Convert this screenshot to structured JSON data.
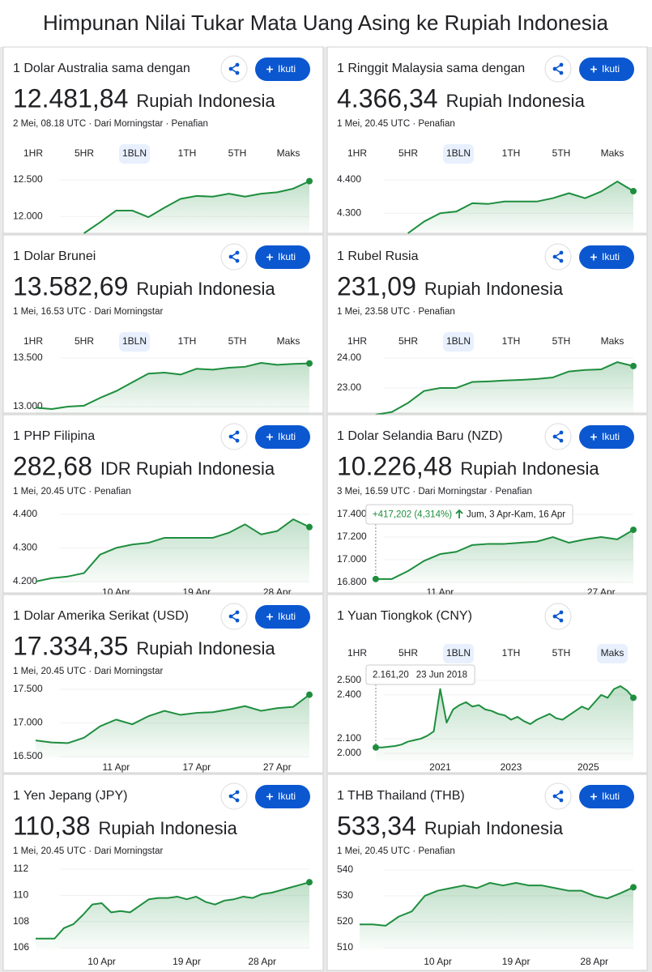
{
  "header": {
    "title": "Himpunan Nilai Tukar Mata Uang Asing ke Rupiah Indonesia"
  },
  "tabs": [
    "1HR",
    "5HR",
    "1BLN",
    "1TH",
    "5TH",
    "Maks"
  ],
  "follow": "Ikuti",
  "cards": [
    {
      "label": "1 Dolar Australia sama dengan",
      "value": "12.481,84",
      "unit": "Rupiah Indonesia",
      "meta": "2 Mei, 08.18 UTC · Dari Morningstar · Penafian",
      "show_tabs": true,
      "active_tabs": [
        2
      ],
      "show_follow": true,
      "chart": {
        "type": "line",
        "color": "#1e8e3e",
        "values": [
          null,
          null,
          null,
          11770,
          11920,
          12080,
          12080,
          11990,
          12120,
          12240,
          12280,
          12270,
          12310,
          12270,
          12310,
          12330,
          12380,
          12482
        ],
        "ylim": [
          11770,
          12710
        ],
        "yticks": [
          {
            "value": 12500,
            "label": "12.500"
          },
          {
            "value": 12000,
            "label": "12.000"
          }
        ]
      }
    },
    {
      "label": "1 Ringgit Malaysia sama dengan",
      "value": "4.366,34",
      "unit": "Rupiah Indonesia",
      "meta": "1 Mei, 20.45 UTC · Penafian",
      "show_tabs": true,
      "active_tabs": [
        2
      ],
      "show_follow": true,
      "chart": {
        "type": "line",
        "color": "#1e8e3e",
        "values": [
          null,
          null,
          null,
          4240,
          4275,
          4300,
          4305,
          4330,
          4328,
          4335,
          4335,
          4335,
          4345,
          4360,
          4345,
          4365,
          4395,
          4366
        ],
        "ylim": [
          4240,
          4446
        ],
        "yticks": [
          {
            "value": 4400,
            "label": "4.400"
          },
          {
            "value": 4300,
            "label": "4.300"
          }
        ]
      }
    },
    {
      "label": "1 Dolar Brunei",
      "value": "13.582,69",
      "unit": "Rupiah Indonesia",
      "meta": "1 Mei, 16.53 UTC · Dari Morningstar",
      "show_tabs": true,
      "active_tabs": [
        2
      ],
      "show_follow": true,
      "chart": {
        "type": "line",
        "color": "#1e8e3e",
        "values": [
          12990,
          12975,
          13000,
          13010,
          13090,
          13160,
          13250,
          13340,
          13350,
          13330,
          13390,
          13380,
          13400,
          13410,
          13450,
          13430,
          13440,
          13445
        ],
        "ylim": [
          12917,
          13600
        ],
        "yticks": [
          {
            "value": 13500,
            "label": "13.500"
          },
          {
            "value": 13000,
            "label": "13.000"
          }
        ]
      }
    },
    {
      "label": "1 Rubel Rusia",
      "value": "231,09",
      "unit": "Rupiah Indonesia",
      "meta": "1 Mei, 23.58 UTC · Penafian",
      "show_tabs": true,
      "active_tabs": [
        2
      ],
      "show_follow": true,
      "chart": {
        "type": "line",
        "color": "#1e8e3e",
        "values": [
          null,
          22.11,
          22.2,
          22.5,
          22.9,
          23.0,
          23.0,
          23.2,
          23.22,
          23.25,
          23.27,
          23.3,
          23.35,
          23.55,
          23.6,
          23.62,
          23.86,
          23.73
        ],
        "ylim": [
          22.11,
          24.32
        ],
        "yticks": [
          {
            "value": 24,
            "label": "24.00"
          },
          {
            "value": 23,
            "label": "23.00"
          }
        ]
      }
    },
    {
      "label": "1 PHP Filipina",
      "value": "282,68",
      "unit": "IDR Rupiah Indonesia",
      "meta": "1 Mei, 20.45 UTC · Penafian",
      "show_tabs": false,
      "show_follow": true,
      "chart": {
        "type": "line",
        "color": "#1e8e3e",
        "categories": [
          null,
          null,
          null,
          null,
          null,
          "10 Apr",
          null,
          null,
          null,
          null,
          "19 Apr",
          null,
          null,
          null,
          null,
          "28 Apr",
          null,
          null
        ],
        "values": [
          4200,
          4210,
          4215,
          4225,
          4280,
          4300,
          4310,
          4315,
          4330,
          4330,
          4330,
          4330,
          4345,
          4370,
          4340,
          4350,
          4385,
          4362
        ],
        "ylim": [
          4195,
          4431
        ],
        "yticks": [
          {
            "value": 4400,
            "label": "4.400"
          },
          {
            "value": 4300,
            "label": "4.300"
          },
          {
            "value": 4200,
            "label": "4.200"
          }
        ]
      }
    },
    {
      "label": "1 Dolar Selandia Baru (NZD)",
      "value": "10.226,48",
      "unit": "Rupiah Indonesia",
      "meta": "3 Mei, 16.59 UTC · Dari Morningstar · Penafian",
      "show_tabs": false,
      "show_follow": true,
      "chart": {
        "type": "line",
        "color": "#1e8e3e",
        "categories": [
          null,
          null,
          null,
          null,
          null,
          "11 Apr",
          null,
          null,
          null,
          null,
          null,
          null,
          null,
          null,
          null,
          "27 Apr",
          null,
          null
        ],
        "values": [
          null,
          16830,
          16830,
          16900,
          16990,
          17050,
          17070,
          17130,
          17140,
          17140,
          17150,
          17160,
          17200,
          17150,
          17180,
          17200,
          17180,
          17264
        ],
        "ylim": [
          16793,
          17529
        ],
        "yticks": [
          {
            "value": 17400,
            "label": "17.400"
          },
          {
            "value": 17200,
            "label": "17.200"
          },
          {
            "value": 17000,
            "label": "17.000"
          },
          {
            "value": 16800,
            "label": "16.800"
          }
        ],
        "tooltip": {
          "change": "+417,202 (4,314%)",
          "range": "Jum, 3 Apr-Kam, 16 Apr"
        }
      }
    },
    {
      "label": "1 Dolar Amerika Serikat (USD)",
      "value": "17.334,35",
      "unit": "Rupiah Indonesia",
      "meta": "1 Mei, 20.45 UTC · Dari Morningstar",
      "show_tabs": false,
      "show_follow": true,
      "chart": {
        "type": "line",
        "color": "#1e8e3e",
        "categories": [
          null,
          null,
          null,
          null,
          null,
          "11 Apr",
          null,
          null,
          null,
          null,
          "17 Apr",
          null,
          null,
          null,
          null,
          "27 Apr",
          null,
          null
        ],
        "values": [
          16740,
          16710,
          16700,
          16780,
          16950,
          17050,
          16980,
          17100,
          17180,
          17120,
          17150,
          17160,
          17200,
          17250,
          17180,
          17220,
          17240,
          17420
        ],
        "ylim": [
          16476,
          17705
        ],
        "yticks": [
          {
            "value": 17500,
            "label": "17.500"
          },
          {
            "value": 17000,
            "label": "17.000"
          },
          {
            "value": 16500,
            "label": "16.500"
          }
        ]
      }
    },
    {
      "label": "1 Yuan Tiongkok (CNY)",
      "show_tabs": true,
      "active_tabs": [
        2,
        5
      ],
      "show_follow": false,
      "chart": {
        "type": "line",
        "color": "#1e8e3e",
        "categories": [
          null,
          null,
          null,
          null,
          null,
          null,
          null,
          null,
          null,
          null,
          "2021",
          null,
          null,
          null,
          null,
          null,
          null,
          null,
          null,
          null,
          null,
          "2023",
          null,
          null,
          null,
          null,
          null,
          null,
          null,
          null,
          null,
          null,
          null,
          "2025",
          null,
          null,
          null,
          null,
          null,
          null,
          null
        ],
        "values": [
          2040,
          2040,
          2045,
          2050,
          2060,
          2080,
          2090,
          2100,
          2120,
          2150,
          2440,
          2210,
          2300,
          2330,
          2350,
          2320,
          2330,
          2300,
          2290,
          2270,
          2260,
          2230,
          2250,
          2220,
          2200,
          2230,
          2250,
          2270,
          2240,
          2230,
          2260,
          2290,
          2320,
          2300,
          2350,
          2400,
          2380,
          2440,
          2460,
          2430,
          2380
        ],
        "ylim": [
          1950,
          2560
        ],
        "yticks": [
          {
            "value": 2500,
            "label": "2.500"
          },
          {
            "value": 2400,
            "label": "2.400"
          },
          {
            "value": 2100,
            "label": "2.100"
          },
          {
            "value": 2000,
            "label": "2.000"
          }
        ],
        "tooltip": {
          "value": "2.161,20",
          "date": "23 Jun 2018"
        }
      }
    },
    {
      "label": "1 Yen Jepang (JPY)",
      "value": "110,38",
      "unit": "Rupiah Indonesia",
      "meta": "1 Mei, 20.45 UTC · Dari Morningstar",
      "show_tabs": false,
      "show_follow": true,
      "chart": {
        "type": "line",
        "color": "#1e8e3e",
        "categories": [
          null,
          null,
          null,
          null,
          null,
          null,
          null,
          "10 Apr",
          null,
          null,
          null,
          null,
          null,
          null,
          null,
          null,
          "19 Apr",
          null,
          null,
          null,
          null,
          null,
          null,
          null,
          "28 Apr",
          null,
          null,
          null,
          null,
          null
        ],
        "values": [
          106.7,
          106.7,
          106.7,
          107.5,
          107.8,
          108.5,
          109.3,
          109.4,
          108.7,
          108.8,
          108.7,
          109.2,
          109.7,
          109.8,
          109.8,
          109.9,
          109.7,
          109.9,
          109.5,
          109.3,
          109.6,
          109.7,
          109.9,
          109.8,
          110.1,
          110.2,
          110.4,
          110.6,
          110.8,
          111.0
        ],
        "ylim": [
          105.88,
          113.05
        ],
        "yticks": [
          112,
          110,
          108,
          106
        ]
      }
    },
    {
      "label": "1 THB Thailand (THB)",
      "value": "533,34",
      "unit": "Rupiah Indonesia",
      "meta": "1 Mei, 20.45 UTC · Penafian",
      "show_tabs": false,
      "show_follow": true,
      "chart": {
        "type": "line",
        "color": "#1e8e3e",
        "categories": [
          null,
          null,
          null,
          null,
          null,
          null,
          "10 Apr",
          null,
          null,
          null,
          null,
          null,
          "19 Apr",
          null,
          null,
          null,
          null,
          null,
          "28 Apr",
          null,
          null,
          null
        ],
        "values": [
          519,
          519,
          518.5,
          522,
          524,
          530,
          532,
          533,
          534,
          533,
          535,
          534,
          535,
          534,
          534,
          533,
          532,
          532,
          530,
          529,
          531,
          533.3
        ],
        "ylim": [
          509.4,
          545.6
        ],
        "yticks": [
          540,
          530,
          520,
          510
        ]
      }
    }
  ]
}
